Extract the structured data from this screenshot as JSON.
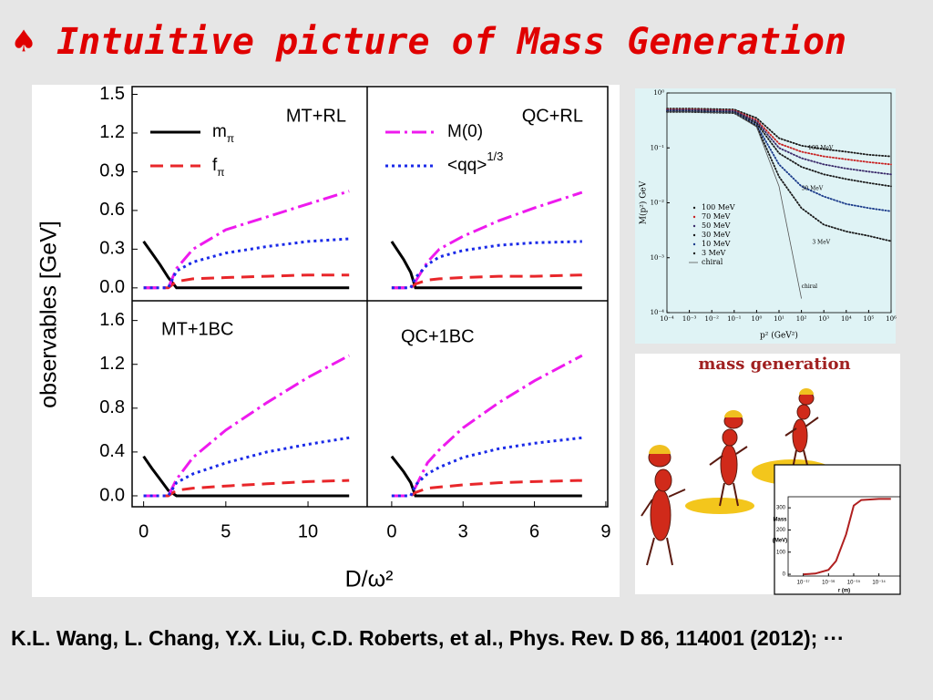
{
  "title": "♠ Intuitive picture of Mass Generation",
  "citation": "K.L. Wang, L. Chang, Y.X. Liu, C.D. Roberts, et al.,  Phys. Rev. D 86, 114001 (2012); ···",
  "figure_labels": {
    "ylabel": "observables [GeV]",
    "xlabel": "D/ω²"
  },
  "cartoon_title": "mass generation",
  "chart_data": [
    {
      "type": "line",
      "title": "MT+RL",
      "x": [
        0,
        0.5,
        1,
        1.5,
        2,
        3,
        5,
        7.5,
        10,
        12.5
      ],
      "xlim": [
        -0.7,
        13.6
      ],
      "ylim": [
        -0.1,
        1.56
      ],
      "yticks": [
        {
          "value": 0,
          "label": "0.0"
        },
        0.3,
        0.6,
        0.9,
        1.2,
        1.5
      ],
      "series": [
        {
          "name": "m",
          "name_sub": "π",
          "color": "#000000",
          "style": "solid",
          "values": [
            0.36,
            0.27,
            0.18,
            0.08,
            0,
            0,
            0,
            0,
            0,
            0
          ]
        },
        {
          "name": "f",
          "name_sub": "π",
          "color": "#e8262a",
          "style": "dash",
          "values": [
            0,
            0,
            0,
            0,
            0.05,
            0.07,
            0.08,
            0.09,
            0.1,
            0.1
          ]
        },
        {
          "color": "#ee1aee",
          "style": "dashdot",
          "values": [
            0,
            0,
            0,
            0,
            0.15,
            0.3,
            0.45,
            0.55,
            0.65,
            0.75
          ]
        },
        {
          "color": "#1a2ae8",
          "style": "dot",
          "values": [
            0,
            0,
            0,
            0,
            0.13,
            0.2,
            0.27,
            0.32,
            0.36,
            0.38
          ]
        }
      ]
    },
    {
      "type": "line",
      "title": "QC+RL",
      "x": [
        0,
        0.5,
        0.8,
        1,
        1.5,
        2,
        3,
        4.5,
        6,
        8
      ],
      "xlim": [
        -1.03,
        9.08
      ],
      "ylim": [
        -0.1,
        1.56
      ],
      "series": [
        {
          "color": "#000000",
          "style": "solid",
          "values": [
            0.36,
            0.22,
            0.12,
            0,
            0,
            0,
            0,
            0,
            0,
            0
          ]
        },
        {
          "color": "#e8262a",
          "style": "dash",
          "values": [
            0,
            0,
            0,
            0.03,
            0.06,
            0.07,
            0.08,
            0.09,
            0.09,
            0.1
          ]
        },
        {
          "name": "M(0)",
          "color": "#ee1aee",
          "style": "dashdot",
          "values": [
            0,
            0,
            0,
            0.05,
            0.2,
            0.3,
            0.4,
            0.52,
            0.62,
            0.74
          ]
        },
        {
          "name": "<qq>",
          "name_sup": "1/3",
          "color": "#1a2ae8",
          "style": "dot",
          "values": [
            0,
            0,
            0,
            0.08,
            0.18,
            0.24,
            0.29,
            0.33,
            0.35,
            0.36
          ]
        }
      ]
    },
    {
      "type": "line",
      "title": "MT+1BC",
      "x": [
        0,
        0.5,
        1,
        1.5,
        2,
        3,
        5,
        7.5,
        10,
        12.5
      ],
      "xlim": [
        -0.7,
        13.6
      ],
      "ylim": [
        -0.1,
        1.78
      ],
      "xticks": [
        0,
        5,
        10
      ],
      "yticks": [
        {
          "value": 0,
          "label": "0.0"
        },
        0.4,
        0.8,
        1.2,
        1.6
      ],
      "series": [
        {
          "color": "#000000",
          "style": "solid",
          "values": [
            0.36,
            0.25,
            0.15,
            0.05,
            0,
            0,
            0,
            0,
            0,
            0
          ]
        },
        {
          "color": "#e8262a",
          "style": "dash",
          "values": [
            0,
            0,
            0,
            0,
            0.05,
            0.07,
            0.09,
            0.11,
            0.13,
            0.14
          ]
        },
        {
          "color": "#ee1aee",
          "style": "dashdot",
          "values": [
            0,
            0,
            0,
            0,
            0.15,
            0.35,
            0.6,
            0.85,
            1.08,
            1.28
          ]
        },
        {
          "color": "#1a2ae8",
          "style": "dot",
          "values": [
            0,
            0,
            0,
            0,
            0.12,
            0.2,
            0.3,
            0.4,
            0.47,
            0.53
          ]
        }
      ]
    },
    {
      "type": "line",
      "title": "QC+1BC",
      "x": [
        0,
        0.5,
        0.8,
        1,
        1.5,
        2,
        3,
        4.5,
        6,
        8
      ],
      "xlim": [
        -1.03,
        9.08
      ],
      "ylim": [
        -0.1,
        1.78
      ],
      "xticks": [
        0,
        3,
        6,
        9
      ],
      "series": [
        {
          "color": "#000000",
          "style": "solid",
          "values": [
            0.36,
            0.22,
            0.12,
            0,
            0,
            0,
            0,
            0,
            0,
            0
          ]
        },
        {
          "color": "#e8262a",
          "style": "dash",
          "values": [
            0,
            0,
            0,
            0.03,
            0.07,
            0.08,
            0.1,
            0.12,
            0.13,
            0.14
          ]
        },
        {
          "color": "#ee1aee",
          "style": "dashdot",
          "values": [
            0,
            0,
            0,
            0.08,
            0.3,
            0.42,
            0.62,
            0.85,
            1.05,
            1.28
          ]
        },
        {
          "color": "#1a2ae8",
          "style": "dot",
          "values": [
            0,
            0,
            0,
            0.1,
            0.2,
            0.26,
            0.35,
            0.43,
            0.48,
            0.53
          ]
        }
      ]
    },
    {
      "type": "line",
      "log_x": true,
      "log_y": true,
      "xlabel": "p² (GeV²)",
      "ylabel": "M(p²) GeV",
      "x": [
        0.0001,
        0.001,
        0.01,
        0.1,
        1,
        10,
        100,
        1000,
        10000,
        100000,
        1000000
      ],
      "xlim": [
        0.0001,
        1000000
      ],
      "ylim": [
        0.0001,
        1
      ],
      "xticks": [
        {
          "value": 0.0001,
          "label": "10⁻⁴"
        },
        {
          "value": 0.001,
          "label": "10⁻³"
        },
        {
          "value": 0.01,
          "label": "10⁻²"
        },
        {
          "value": 0.1,
          "label": "10⁻¹"
        },
        {
          "value": 1,
          "label": "10⁰"
        },
        {
          "value": 10,
          "label": "10¹"
        },
        {
          "value": 100,
          "label": "10²"
        },
        {
          "value": 1000,
          "label": "10³"
        },
        {
          "value": 10000,
          "label": "10⁴"
        },
        {
          "value": 100000,
          "label": "10⁵"
        },
        {
          "value": 1000000,
          "label": "10⁶"
        }
      ],
      "yticks": [
        {
          "value": 0.0001,
          "label": "10⁻⁴"
        },
        {
          "value": 0.001,
          "label": "10⁻³"
        },
        {
          "value": 0.01,
          "label": "10⁻²"
        },
        {
          "value": 0.1,
          "label": "10⁻¹"
        },
        {
          "value": 1,
          "label": "10⁰"
        }
      ],
      "series": [
        {
          "name": "100 MeV",
          "color": "#1a1a1a",
          "style": "dotted",
          "values": [
            0.52,
            0.52,
            0.51,
            0.5,
            0.35,
            0.15,
            0.11,
            0.095,
            0.085,
            0.075,
            0.07
          ]
        },
        {
          "name": "70 MeV",
          "color": "#c82020",
          "style": "dotted",
          "values": [
            0.5,
            0.5,
            0.49,
            0.48,
            0.32,
            0.12,
            0.085,
            0.07,
            0.062,
            0.055,
            0.05
          ]
        },
        {
          "name": "50 MeV",
          "color": "#3a2a6a",
          "style": "dotted",
          "values": [
            0.49,
            0.49,
            0.48,
            0.47,
            0.3,
            0.1,
            0.065,
            0.05,
            0.042,
            0.037,
            0.033
          ]
        },
        {
          "name": "30 MeV",
          "color": "#1a1a1a",
          "style": "dotted",
          "values": [
            0.47,
            0.47,
            0.46,
            0.45,
            0.28,
            0.08,
            0.045,
            0.033,
            0.027,
            0.023,
            0.02
          ]
        },
        {
          "name": "10 MeV",
          "color": "#1a3a8a",
          "style": "dotted",
          "values": [
            0.46,
            0.46,
            0.45,
            0.44,
            0.26,
            0.05,
            0.02,
            0.013,
            0.0095,
            0.008,
            0.007
          ]
        },
        {
          "name": "3 MeV",
          "color": "#1a1a1a",
          "style": "dotted",
          "values": [
            0.45,
            0.45,
            0.44,
            0.43,
            0.25,
            0.03,
            0.008,
            0.004,
            0.003,
            0.0025,
            0.002
          ]
        },
        {
          "name": "chiral",
          "color": "#555555",
          "style": "thin",
          "values": [
            0.45,
            0.45,
            0.44,
            0.43,
            0.24,
            0.02,
            0.00018,
            null,
            null,
            null,
            null
          ]
        }
      ],
      "annotations": [
        {
          "text": "100 MeV",
          "x": 200,
          "y": 0.1
        },
        {
          "text": "30 MeV",
          "x": 100,
          "y": 0.018
        },
        {
          "text": "3 MeV",
          "x": 300,
          "y": 0.0019
        },
        {
          "text": "chiral",
          "x": 100,
          "y": 0.0003
        }
      ]
    },
    {
      "type": "line",
      "log_x": true,
      "xlabel": "r (m)",
      "ylabel": "Mass",
      "ylabel_unit": "(MeV)",
      "x": [
        1e-17,
        3e-17,
        1e-16,
        2e-16,
        5e-16,
        1e-15,
        2e-15,
        1e-14,
        3e-14
      ],
      "xlim": [
        2.5e-18,
        7e-14
      ],
      "ylim": [
        -8,
        350
      ],
      "xticks": [
        {
          "value": 1e-17,
          "label": "10⁻¹⁷"
        },
        {
          "value": 1e-16,
          "label": "10⁻¹⁶"
        },
        {
          "value": 1e-15,
          "label": "10⁻¹⁵"
        },
        {
          "value": 1e-14,
          "label": "10⁻¹⁴"
        }
      ],
      "yticks": [
        0,
        100,
        200,
        300
      ],
      "series": [
        {
          "color": "#b02020",
          "style": "thick",
          "values": [
            0,
            3,
            20,
            60,
            180,
            310,
            335,
            340,
            340
          ]
        }
      ]
    }
  ]
}
